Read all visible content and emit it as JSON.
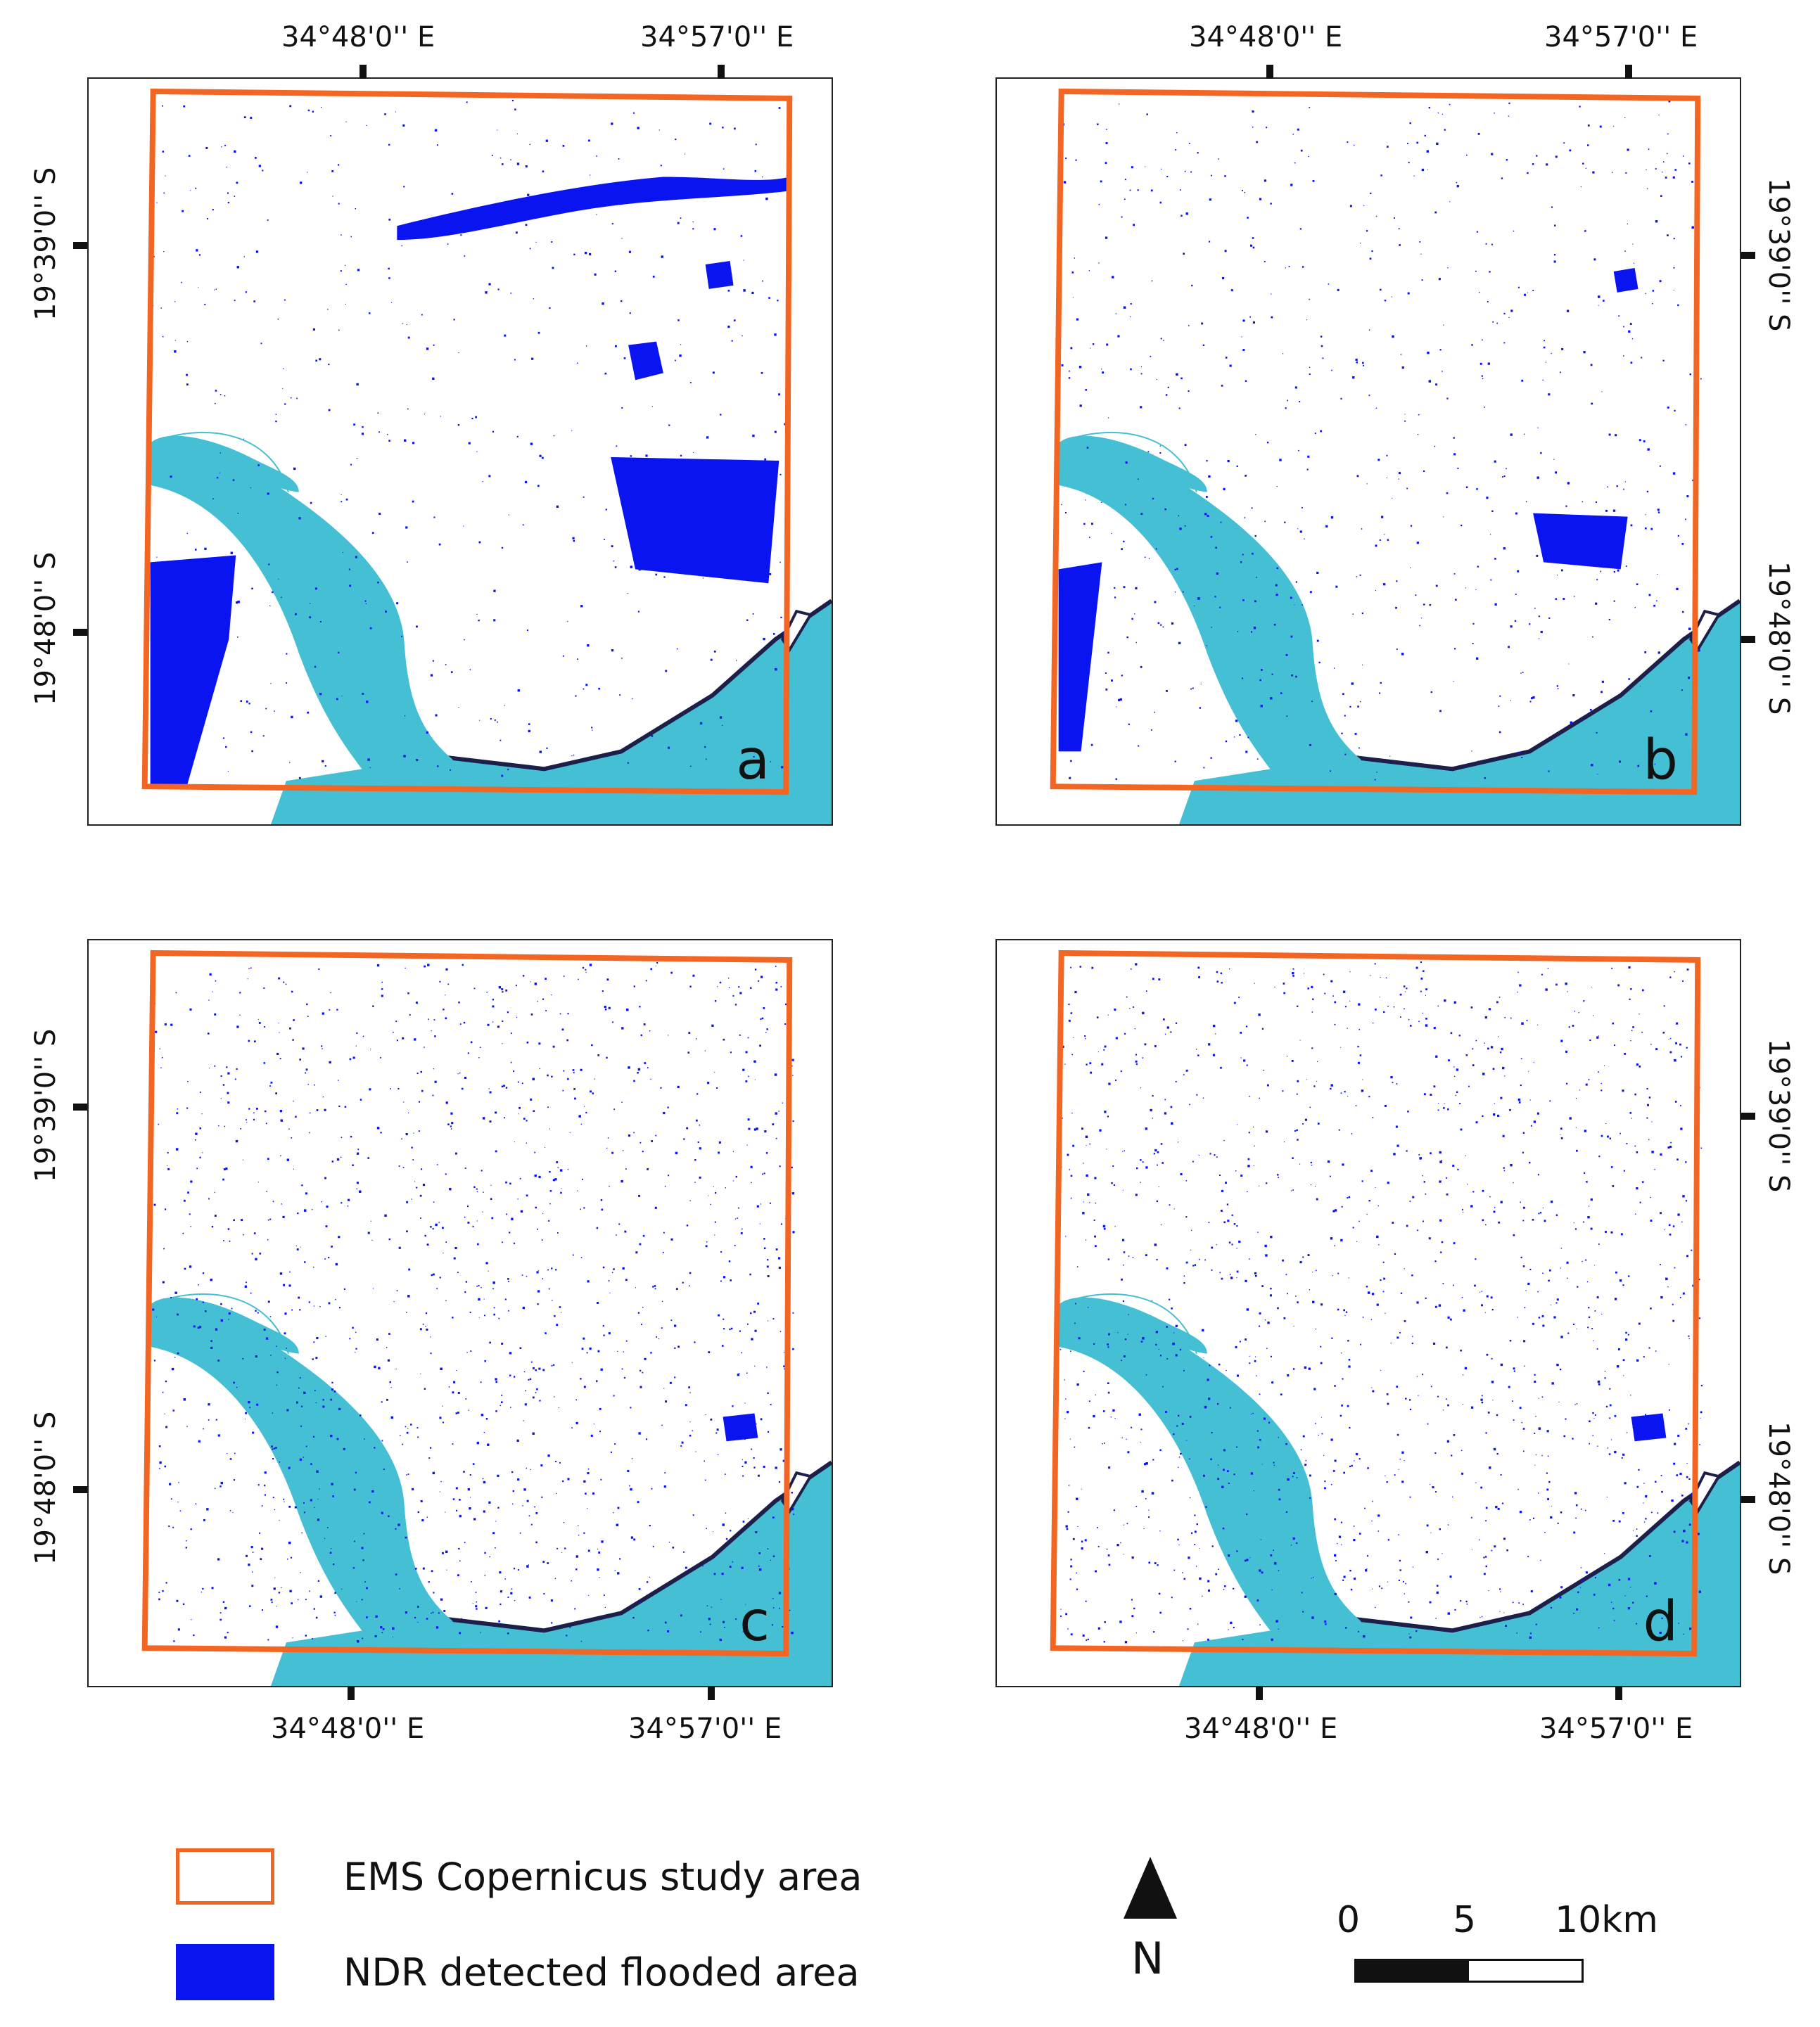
{
  "panels": [
    {
      "letter": "a",
      "flood": "heavy"
    },
    {
      "letter": "b",
      "flood": "moderate"
    },
    {
      "letter": "c",
      "flood": "sparse"
    },
    {
      "letter": "d",
      "flood": "sparse"
    }
  ],
  "coords": {
    "lon1": "34°48'0'' E",
    "lon2": "34°57'0'' E",
    "lat1": "19°39'0'' S",
    "lat2": "19°48'0'' S"
  },
  "legend": {
    "study_area": "EMS Copernicus study area",
    "flooded": "NDR detected flooded area"
  },
  "north": {
    "label": "N"
  },
  "scalebar": {
    "labels": [
      "0",
      "5",
      "10km"
    ]
  },
  "colors": {
    "study_area": "#f26522",
    "flooded": "#0a14f0",
    "water": "#45bfd3",
    "coast": "#1b1f4a"
  }
}
